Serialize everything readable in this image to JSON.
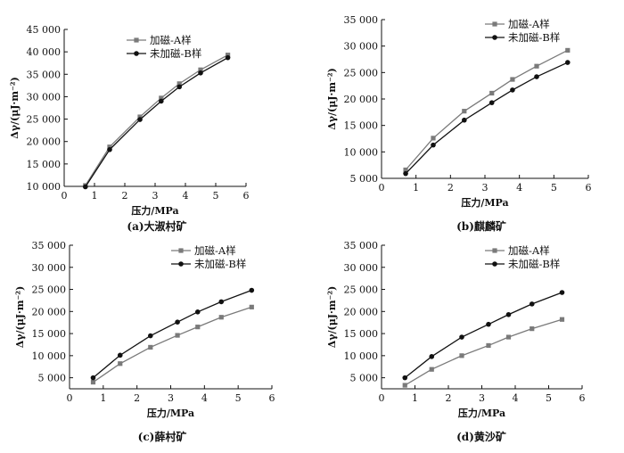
{
  "figure": {
    "panels": [
      {
        "caption": "(a)大淑村矿"
      },
      {
        "caption": "(b)麒麟矿"
      },
      {
        "caption": "(c)薛村矿"
      },
      {
        "caption": "(d)黄沙矿"
      }
    ]
  },
  "chart_data": [
    {
      "type": "line",
      "caption": "(a)大淑村矿",
      "xlabel": "压力/MPa",
      "ylabel": "Δγ/(μJ·m⁻²)",
      "xlim": [
        0,
        6
      ],
      "ylim": [
        10000,
        45000
      ],
      "xticks": [
        0,
        1,
        2,
        3,
        4,
        5,
        6
      ],
      "yticks": [
        10000,
        15000,
        20000,
        25000,
        30000,
        35000,
        40000,
        45000
      ],
      "yticklabels": [
        "10 000",
        "15 000",
        "20 000",
        "25 000",
        "30 000",
        "35 000",
        "40 000",
        "45 000"
      ],
      "legend_position": "top-right",
      "x": [
        0.7,
        1.5,
        2.5,
        3.2,
        3.8,
        4.5,
        5.4
      ],
      "series": [
        {
          "name": "加磁-A样",
          "marker": "square",
          "color": "#7a7a7a",
          "values": [
            10200,
            18800,
            25500,
            29700,
            32900,
            36000,
            39300
          ]
        },
        {
          "name": "未加磁-B样",
          "marker": "circle",
          "color": "#111111",
          "values": [
            9900,
            18200,
            24900,
            29000,
            32200,
            35300,
            38700
          ]
        }
      ]
    },
    {
      "type": "line",
      "caption": "(b)麒麟矿",
      "xlabel": "压力/MPa",
      "ylabel": "Δγ/(μJ·m⁻²)",
      "xlim": [
        0,
        6
      ],
      "ylim": [
        5000,
        35000
      ],
      "xticks": [
        0,
        1,
        2,
        3,
        4,
        5,
        6
      ],
      "yticks": [
        5000,
        10000,
        15000,
        20000,
        25000,
        30000,
        35000
      ],
      "yticklabels": [
        "5 000",
        "10 000",
        "15 000",
        "20 000",
        "25 000",
        "30 000",
        "35 000"
      ],
      "legend_position": "top-right",
      "x": [
        0.7,
        1.5,
        2.4,
        3.2,
        3.8,
        4.5,
        5.4
      ],
      "series": [
        {
          "name": "加磁-A样",
          "marker": "square",
          "color": "#7a7a7a",
          "values": [
            6600,
            12600,
            17700,
            21100,
            23700,
            26200,
            29200
          ]
        },
        {
          "name": "未加磁-B样",
          "marker": "circle",
          "color": "#111111",
          "values": [
            5900,
            11300,
            16000,
            19300,
            21700,
            24200,
            26900
          ]
        }
      ]
    },
    {
      "type": "line",
      "caption": "(c)薛村矿",
      "xlabel": "压力/MPa",
      "ylabel": "Δγ/(μJ·m⁻²)",
      "xlim": [
        0,
        6
      ],
      "ylim": [
        2500,
        35000
      ],
      "xticks": [
        0,
        1,
        2,
        3,
        4,
        5,
        6
      ],
      "yticks": [
        5000,
        10000,
        15000,
        20000,
        25000,
        30000,
        35000
      ],
      "yticklabels": [
        "5 000",
        "10 000",
        "15 000",
        "20 000",
        "25 000",
        "30 000",
        "35 000"
      ],
      "legend_position": "top-right",
      "x": [
        0.7,
        1.5,
        2.4,
        3.2,
        3.8,
        4.5,
        5.4
      ],
      "series": [
        {
          "name": "加磁-A样",
          "marker": "square",
          "color": "#7a7a7a",
          "values": [
            4000,
            8200,
            11900,
            14600,
            16500,
            18700,
            21000
          ]
        },
        {
          "name": "未加磁-B样",
          "marker": "circle",
          "color": "#111111",
          "values": [
            5000,
            10100,
            14500,
            17600,
            19900,
            22200,
            24800
          ]
        }
      ]
    },
    {
      "type": "line",
      "caption": "(d)黄沙矿",
      "xlabel": "压力/MPa",
      "ylabel": "Δγ/(μJ·m⁻²)",
      "xlim": [
        0,
        6
      ],
      "ylim": [
        2500,
        35000
      ],
      "xticks": [
        0,
        1,
        2,
        3,
        4,
        5,
        6
      ],
      "yticks": [
        5000,
        10000,
        15000,
        20000,
        25000,
        30000,
        35000
      ],
      "yticklabels": [
        "5 000",
        "10 000",
        "15 000",
        "20 000",
        "25 000",
        "30 000",
        "35 000"
      ],
      "legend_position": "top-right",
      "x": [
        0.7,
        1.5,
        2.4,
        3.2,
        3.8,
        4.5,
        5.4
      ],
      "series": [
        {
          "name": "加磁-A样",
          "marker": "square",
          "color": "#7a7a7a",
          "values": [
            3300,
            6900,
            10000,
            12300,
            14200,
            16100,
            18200
          ]
        },
        {
          "name": "未加磁-B样",
          "marker": "circle",
          "color": "#111111",
          "values": [
            5000,
            9800,
            14200,
            17100,
            19300,
            21700,
            24300
          ]
        }
      ]
    }
  ]
}
